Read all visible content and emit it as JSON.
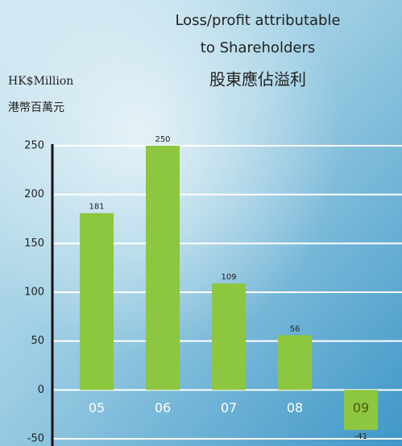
{
  "chart_data": {
    "type": "bar",
    "title": "Loss/profit attributable",
    "title_line2": "to Shareholders",
    "title_chinese": "股東應佔溢利",
    "y_axis_label": "HK$Million",
    "y_axis_label_chinese": "港幣百萬元",
    "categories": [
      "05",
      "06",
      "07",
      "08",
      "09"
    ],
    "values": [
      181,
      250,
      109,
      56,
      -41
    ],
    "color": "#8dc63f",
    "ylim": [
      -50,
      250
    ],
    "yticks": [
      -50,
      0,
      50,
      100,
      150,
      200,
      250
    ],
    "grid": true
  }
}
